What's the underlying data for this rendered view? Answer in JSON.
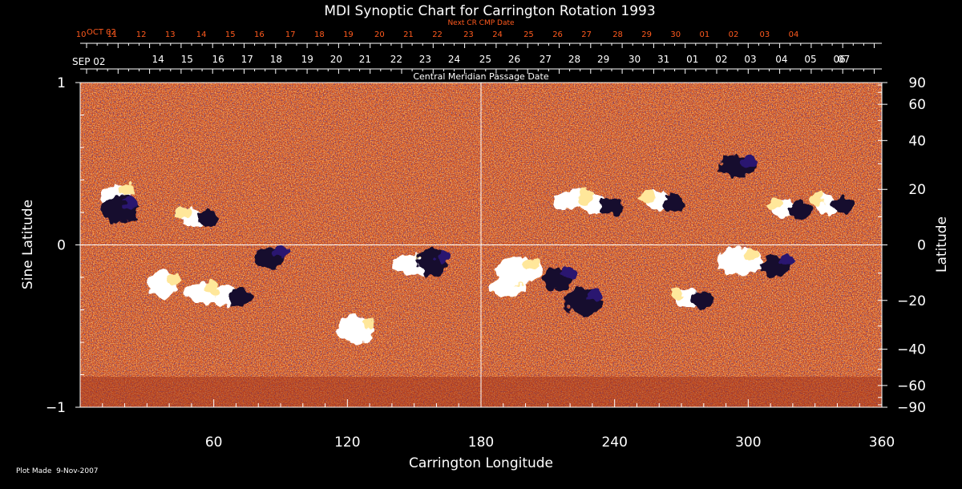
{
  "chart_data": {
    "type": "heatmap",
    "title": "MDI Synoptic Chart for Carrington Rotation 1993",
    "xlabel": "Carrington Longitude",
    "ylabel_left": "Sine Latitude",
    "ylabel_right": "Latitude",
    "xlim": [
      0,
      360
    ],
    "ylim": [
      -1,
      1
    ],
    "x_ticks": [
      60,
      120,
      180,
      240,
      300,
      360
    ],
    "left_ticks": [
      -1,
      0,
      1
    ],
    "left_tick_labels": [
      "−1",
      "0",
      "1"
    ],
    "right_ticks": [
      90,
      60,
      40,
      20,
      0,
      -20,
      -40,
      -60,
      -90
    ],
    "right_tick_labels": [
      "90",
      "60",
      "40",
      "20",
      "0",
      "−20",
      "−40",
      "−60",
      "−90"
    ],
    "grid": {
      "vertical_at_longitude": 180,
      "horizontal_at_sine_latitude": 0
    },
    "cmp_axis": {
      "label": "Central Meridian Passage Date",
      "start_label": "SEP 02",
      "dates": [
        "07",
        "06",
        "05",
        "04",
        "03",
        "02",
        "01",
        "31",
        "30",
        "29",
        "28",
        "27",
        "26",
        "25",
        "24",
        "23",
        "22",
        "21",
        "20",
        "19",
        "18",
        "17",
        "16",
        "15",
        "14"
      ],
      "dates_longitude": [
        348,
        346,
        333,
        320,
        306,
        293,
        280,
        267,
        254,
        240,
        227,
        214,
        200,
        187,
        173,
        160,
        147,
        133,
        120,
        107,
        93,
        80,
        67,
        53,
        40
      ]
    },
    "next_cr_axis": {
      "label": "Next CR CMP Date",
      "start_label": "OCT 02",
      "dates": [
        "04",
        "03",
        "02",
        "01",
        "30",
        "29",
        "28",
        "27",
        "26",
        "25",
        "24",
        "23",
        "22",
        "21",
        "20",
        "19",
        "18",
        "17",
        "16",
        "15",
        "14",
        "13",
        "12",
        "11",
        "10"
      ],
      "dates_longitude": [
        333,
        320,
        306,
        293,
        280,
        267,
        254,
        240,
        227,
        214,
        200,
        187,
        173,
        160,
        147,
        133,
        120,
        107,
        93,
        80,
        67,
        53,
        40,
        27,
        13
      ],
      "color": "#ff5a1e"
    },
    "footer": "Plot Made  9-Nov-2007",
    "colors": {
      "background_field": "#d8501a",
      "positive_polarity": "#ffffff",
      "negative_polarity": "#1a1040",
      "axis": "#ffffff"
    },
    "active_regions": [
      {
        "lon": 16,
        "sinlat": 0.3,
        "polarity": "positive"
      },
      {
        "lon": 18,
        "sinlat": 0.22,
        "polarity": "negative"
      },
      {
        "lon": 54,
        "sinlat": 0.17,
        "polarity": "mixed"
      },
      {
        "lon": 37,
        "sinlat": -0.25,
        "polarity": "positive"
      },
      {
        "lon": 55,
        "sinlat": -0.3,
        "polarity": "positive"
      },
      {
        "lon": 68,
        "sinlat": -0.31,
        "polarity": "mixed"
      },
      {
        "lon": 85,
        "sinlat": -0.08,
        "polarity": "negative"
      },
      {
        "lon": 124,
        "sinlat": -0.52,
        "polarity": "positive"
      },
      {
        "lon": 150,
        "sinlat": -0.12,
        "polarity": "positive"
      },
      {
        "lon": 158,
        "sinlat": -0.11,
        "polarity": "negative"
      },
      {
        "lon": 192,
        "sinlat": -0.26,
        "polarity": "positive"
      },
      {
        "lon": 197,
        "sinlat": -0.16,
        "polarity": "positive"
      },
      {
        "lon": 214,
        "sinlat": -0.21,
        "polarity": "negative"
      },
      {
        "lon": 226,
        "sinlat": -0.35,
        "polarity": "negative"
      },
      {
        "lon": 222,
        "sinlat": 0.28,
        "polarity": "positive"
      },
      {
        "lon": 235,
        "sinlat": 0.25,
        "polarity": "mixed"
      },
      {
        "lon": 263,
        "sinlat": 0.27,
        "polarity": "mixed"
      },
      {
        "lon": 296,
        "sinlat": -0.1,
        "polarity": "positive"
      },
      {
        "lon": 312,
        "sinlat": -0.13,
        "polarity": "negative"
      },
      {
        "lon": 320,
        "sinlat": 0.22,
        "polarity": "mixed"
      },
      {
        "lon": 339,
        "sinlat": 0.25,
        "polarity": "mixed"
      },
      {
        "lon": 276,
        "sinlat": -0.33,
        "polarity": "mixed"
      },
      {
        "lon": 295,
        "sinlat": 0.48,
        "polarity": "negative"
      }
    ]
  }
}
